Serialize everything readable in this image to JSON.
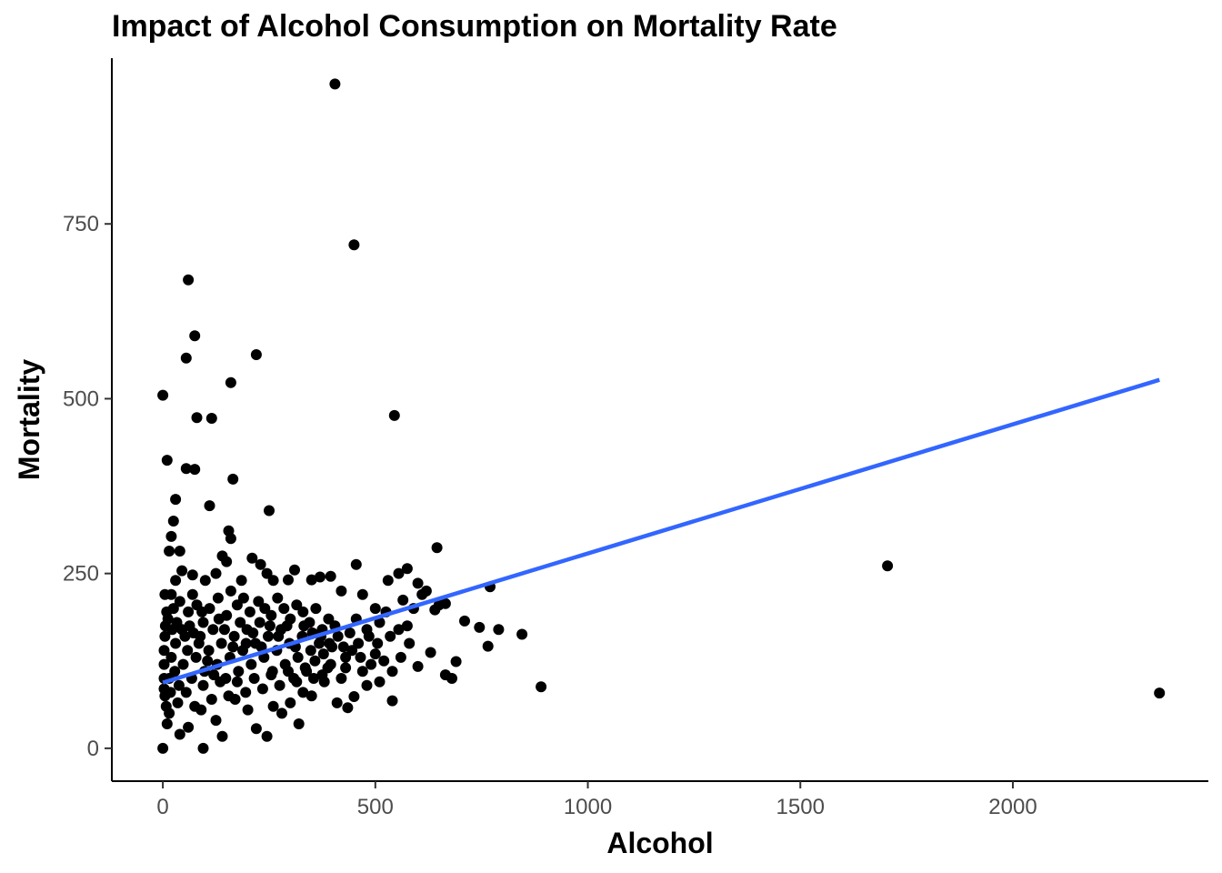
{
  "chart_data": {
    "type": "scatter",
    "title": "Impact of Alcohol Consumption on Mortality Rate",
    "xlabel": "Alcohol",
    "ylabel": "Mortality",
    "xlim": [
      -120,
      2460
    ],
    "ylim": [
      -47,
      987
    ],
    "x_ticks": [
      0,
      500,
      1000,
      1500,
      2000
    ],
    "y_ticks": [
      0,
      250,
      500,
      750
    ],
    "grid": false,
    "point_color": "#000000",
    "trend_color": "#3366FF",
    "trend_line": {
      "x": [
        0,
        2345
      ],
      "y": [
        94,
        527
      ]
    },
    "points": [
      [
        405,
        950
      ],
      [
        450,
        720
      ],
      [
        60,
        670
      ],
      [
        75,
        590
      ],
      [
        55,
        558
      ],
      [
        220,
        563
      ],
      [
        0,
        505
      ],
      [
        160,
        523
      ],
      [
        80,
        473
      ],
      [
        115,
        472
      ],
      [
        545,
        476
      ],
      [
        10,
        412
      ],
      [
        55,
        400
      ],
      [
        75,
        399
      ],
      [
        165,
        385
      ],
      [
        250,
        340
      ],
      [
        30,
        356
      ],
      [
        110,
        347
      ],
      [
        25,
        325
      ],
      [
        155,
        311
      ],
      [
        160,
        300
      ],
      [
        20,
        303
      ],
      [
        15,
        282
      ],
      [
        40,
        282
      ],
      [
        645,
        287
      ],
      [
        1705,
        261
      ],
      [
        2345,
        79
      ],
      [
        890,
        88
      ],
      [
        770,
        231
      ],
      [
        710,
        182
      ],
      [
        745,
        173
      ],
      [
        790,
        170
      ],
      [
        845,
        163
      ],
      [
        765,
        146
      ],
      [
        690,
        124
      ],
      [
        680,
        100
      ],
      [
        665,
        105
      ],
      [
        630,
        137
      ],
      [
        600,
        236
      ],
      [
        620,
        225
      ],
      [
        575,
        257
      ],
      [
        555,
        250
      ],
      [
        530,
        240
      ],
      [
        540,
        68
      ],
      [
        480,
        90
      ],
      [
        450,
        74
      ],
      [
        435,
        58
      ],
      [
        410,
        65
      ],
      [
        320,
        35
      ],
      [
        245,
        17
      ],
      [
        220,
        28
      ],
      [
        140,
        17
      ],
      [
        95,
        0
      ],
      [
        0,
        0
      ],
      [
        5,
        220
      ],
      [
        20,
        220
      ],
      [
        45,
        254
      ],
      [
        30,
        240
      ],
      [
        70,
        248
      ],
      [
        100,
        240
      ],
      [
        125,
        250
      ],
      [
        140,
        275
      ],
      [
        150,
        267
      ],
      [
        185,
        240
      ],
      [
        210,
        272
      ],
      [
        230,
        263
      ],
      [
        245,
        250
      ],
      [
        260,
        240
      ],
      [
        295,
        241
      ],
      [
        310,
        255
      ],
      [
        350,
        241
      ],
      [
        370,
        245
      ],
      [
        395,
        246
      ],
      [
        420,
        225
      ],
      [
        455,
        263
      ],
      [
        470,
        220
      ],
      [
        500,
        200
      ],
      [
        525,
        195
      ],
      [
        565,
        212
      ],
      [
        590,
        200
      ],
      [
        610,
        220
      ],
      [
        650,
        205
      ],
      [
        665,
        207
      ],
      [
        640,
        198
      ],
      [
        510,
        180
      ],
      [
        480,
        170
      ],
      [
        430,
        130
      ],
      [
        460,
        150
      ],
      [
        500,
        135
      ],
      [
        520,
        125
      ],
      [
        540,
        110
      ],
      [
        560,
        130
      ],
      [
        580,
        150
      ],
      [
        600,
        117
      ],
      [
        420,
        100
      ],
      [
        395,
        120
      ],
      [
        380,
        95
      ],
      [
        430,
        115
      ],
      [
        470,
        110
      ],
      [
        510,
        95
      ],
      [
        350,
        75
      ],
      [
        330,
        80
      ],
      [
        300,
        65
      ],
      [
        280,
        50
      ],
      [
        260,
        60
      ],
      [
        200,
        55
      ],
      [
        170,
        70
      ],
      [
        125,
        40
      ],
      [
        90,
        55
      ],
      [
        60,
        30
      ],
      [
        40,
        20
      ],
      [
        10,
        35
      ],
      [
        5,
        75
      ],
      [
        15,
        100
      ],
      [
        20,
        130
      ],
      [
        30,
        150
      ],
      [
        5,
        160
      ],
      [
        12,
        185
      ],
      [
        25,
        200
      ],
      [
        40,
        210
      ],
      [
        60,
        195
      ],
      [
        70,
        220
      ],
      [
        80,
        205
      ],
      [
        95,
        180
      ],
      [
        110,
        200
      ],
      [
        130,
        215
      ],
      [
        150,
        190
      ],
      [
        160,
        225
      ],
      [
        175,
        205
      ],
      [
        190,
        215
      ],
      [
        205,
        195
      ],
      [
        225,
        210
      ],
      [
        240,
        200
      ],
      [
        255,
        190
      ],
      [
        270,
        215
      ],
      [
        285,
        200
      ],
      [
        300,
        185
      ],
      [
        315,
        205
      ],
      [
        330,
        195
      ],
      [
        345,
        180
      ],
      [
        360,
        200
      ],
      [
        375,
        170
      ],
      [
        390,
        185
      ],
      [
        405,
        175
      ],
      [
        440,
        165
      ],
      [
        455,
        185
      ],
      [
        485,
        160
      ],
      [
        8,
        60
      ],
      [
        18,
        80
      ],
      [
        28,
        110
      ],
      [
        38,
        90
      ],
      [
        48,
        120
      ],
      [
        58,
        140
      ],
      [
        68,
        100
      ],
      [
        78,
        130
      ],
      [
        88,
        160
      ],
      [
        98,
        110
      ],
      [
        108,
        140
      ],
      [
        118,
        170
      ],
      [
        128,
        120
      ],
      [
        138,
        150
      ],
      [
        148,
        100
      ],
      [
        158,
        130
      ],
      [
        168,
        160
      ],
      [
        178,
        110
      ],
      [
        188,
        140
      ],
      [
        198,
        170
      ],
      [
        208,
        120
      ],
      [
        218,
        150
      ],
      [
        228,
        180
      ],
      [
        238,
        130
      ],
      [
        248,
        160
      ],
      [
        258,
        110
      ],
      [
        268,
        140
      ],
      [
        278,
        170
      ],
      [
        288,
        120
      ],
      [
        298,
        150
      ],
      [
        308,
        100
      ],
      [
        318,
        130
      ],
      [
        328,
        160
      ],
      [
        338,
        110
      ],
      [
        348,
        140
      ],
      [
        358,
        125
      ],
      [
        368,
        150
      ],
      [
        378,
        135
      ],
      [
        388,
        115
      ],
      [
        398,
        145
      ],
      [
        15,
        50
      ],
      [
        35,
        65
      ],
      [
        55,
        80
      ],
      [
        75,
        60
      ],
      [
        95,
        90
      ],
      [
        115,
        70
      ],
      [
        135,
        95
      ],
      [
        155,
        75
      ],
      [
        175,
        95
      ],
      [
        195,
        80
      ],
      [
        215,
        100
      ],
      [
        235,
        85
      ],
      [
        255,
        105
      ],
      [
        275,
        90
      ],
      [
        295,
        110
      ],
      [
        315,
        95
      ],
      [
        335,
        115
      ],
      [
        355,
        100
      ],
      [
        375,
        105
      ],
      [
        3,
        120
      ],
      [
        3,
        140
      ],
      [
        3,
        100
      ],
      [
        3,
        85
      ],
      [
        6,
        175
      ],
      [
        9,
        195
      ],
      [
        22,
        170
      ],
      [
        33,
        180
      ],
      [
        45,
        170
      ],
      [
        52,
        160
      ],
      [
        63,
        175
      ],
      [
        72,
        165
      ],
      [
        85,
        150
      ],
      [
        92,
        195
      ],
      [
        105,
        125
      ],
      [
        120,
        105
      ],
      [
        132,
        185
      ],
      [
        145,
        170
      ],
      [
        165,
        145
      ],
      [
        182,
        180
      ],
      [
        196,
        150
      ],
      [
        212,
        165
      ],
      [
        232,
        145
      ],
      [
        252,
        175
      ],
      [
        272,
        160
      ],
      [
        292,
        175
      ],
      [
        312,
        145
      ],
      [
        332,
        175
      ],
      [
        352,
        165
      ],
      [
        372,
        160
      ],
      [
        392,
        150
      ],
      [
        412,
        160
      ],
      [
        425,
        145
      ],
      [
        445,
        140
      ],
      [
        465,
        130
      ],
      [
        490,
        120
      ],
      [
        505,
        150
      ],
      [
        535,
        160
      ],
      [
        555,
        170
      ],
      [
        575,
        175
      ]
    ]
  }
}
